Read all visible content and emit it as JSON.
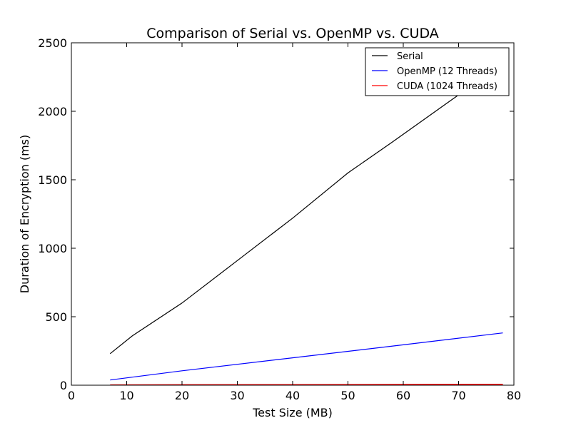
{
  "chart_data": {
    "type": "line",
    "title": "Comparison of Serial vs. OpenMP vs. CUDA",
    "xlabel": "Test Size (MB)",
    "ylabel": "Duration of Encryption (ms)",
    "xlim": [
      0,
      80
    ],
    "ylim": [
      0,
      2500
    ],
    "xticks": [
      0,
      10,
      20,
      30,
      40,
      50,
      60,
      70,
      80
    ],
    "yticks": [
      0,
      500,
      1000,
      1500,
      2000,
      2500
    ],
    "grid": false,
    "legend_position": "top-right",
    "series": [
      {
        "name": "Serial",
        "color": "#000000",
        "x": [
          7,
          11,
          20,
          30,
          40,
          50,
          58,
          70,
          78
        ],
        "y": [
          230,
          360,
          600,
          910,
          1220,
          1550,
          1775,
          2120,
          2350
        ]
      },
      {
        "name": "OpenMP (12 Threads)",
        "color": "#0000ff",
        "x": [
          7,
          20,
          40,
          60,
          78
        ],
        "y": [
          38,
          105,
          200,
          295,
          382
        ]
      },
      {
        "name": "CUDA (1024 Threads)",
        "color": "#ff0000",
        "x": [
          7,
          20,
          40,
          60,
          78
        ],
        "y": [
          2,
          3,
          4,
          5,
          6
        ]
      }
    ]
  }
}
